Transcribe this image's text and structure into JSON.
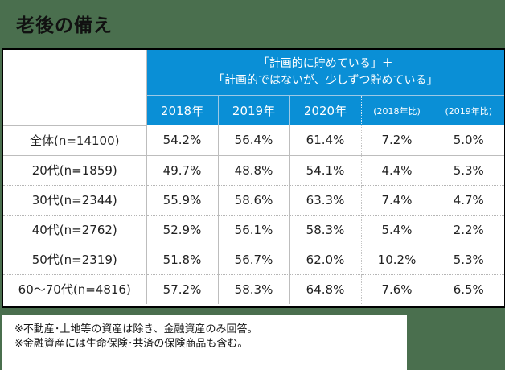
{
  "title": "老後の備え",
  "table": {
    "header_main_line1": "「計画的に貯めている」＋",
    "header_main_line2": "「計画的ではないが、少しずつ貯めている」",
    "columns": [
      "2018年",
      "2019年",
      "2020年",
      "(2018年比)",
      "(2019年比)"
    ],
    "rows": [
      {
        "label": "全体(n=14100)",
        "values": [
          "54.2%",
          "56.4%",
          "61.4%",
          "7.2%",
          "5.0%"
        ]
      },
      {
        "label": "20代(n=1859)",
        "values": [
          "49.7%",
          "48.8%",
          "54.1%",
          "4.4%",
          "5.3%"
        ]
      },
      {
        "label": "30代(n=2344)",
        "values": [
          "55.9%",
          "58.6%",
          "63.3%",
          "7.4%",
          "4.7%"
        ]
      },
      {
        "label": "40代(n=2762)",
        "values": [
          "52.9%",
          "56.1%",
          "58.3%",
          "5.4%",
          "2.2%"
        ]
      },
      {
        "label": "50代(n=2319)",
        "values": [
          "51.8%",
          "56.7%",
          "62.0%",
          "10.2%",
          "5.3%"
        ]
      },
      {
        "label": "60〜70代(n=4816)",
        "values": [
          "57.2%",
          "58.3%",
          "64.8%",
          "7.6%",
          "6.5%"
        ]
      }
    ]
  },
  "notes": [
    "※不動産･土地等の資産は除き、金融資産のみ回答。",
    "※金融資産には生命保険･共済の保険商品も含む。"
  ],
  "colors": {
    "background": "#4a6f4e",
    "header_blue": "#0a8fd6"
  }
}
